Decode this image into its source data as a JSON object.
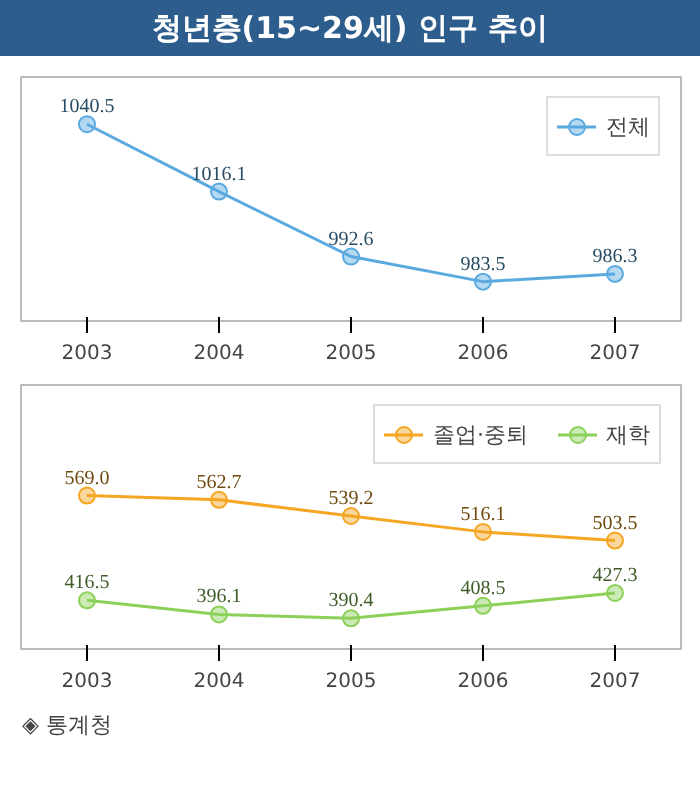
{
  "chart_data": [
    {
      "type": "line",
      "title": "청년층(15~29세) 인구 추이",
      "categories": [
        "2003",
        "2004",
        "2005",
        "2006",
        "2007"
      ],
      "series": [
        {
          "name": "전체",
          "color": "#5aaae0",
          "values": [
            1040.5,
            1016.1,
            992.6,
            983.5,
            986.3
          ],
          "value_labels": [
            "1040.5",
            "1016.1",
            "992.6",
            "983.5",
            "986.3"
          ]
        }
      ],
      "legend": "top right",
      "marker": "circle",
      "tick_labels": "x"
    },
    {
      "type": "line",
      "categories": [
        "2003",
        "2004",
        "2005",
        "2006",
        "2007"
      ],
      "series": [
        {
          "name": "졸업·중퇴",
          "color": "#f5a623",
          "values": [
            569.0,
            562.7,
            539.2,
            516.1,
            503.5
          ],
          "value_labels": [
            "569.0",
            "562.7",
            "539.2",
            "516.1",
            "503.5"
          ]
        },
        {
          "name": "재학",
          "color": "#8cd05a",
          "values": [
            416.5,
            396.1,
            390.4,
            408.5,
            427.3
          ],
          "value_labels": [
            "416.5",
            "396.1",
            "390.4",
            "408.5",
            "427.3"
          ]
        }
      ],
      "legend": "top right",
      "marker": "circle",
      "tick_labels": "x",
      "annotations": [
        "◈ 통계청"
      ]
    }
  ]
}
